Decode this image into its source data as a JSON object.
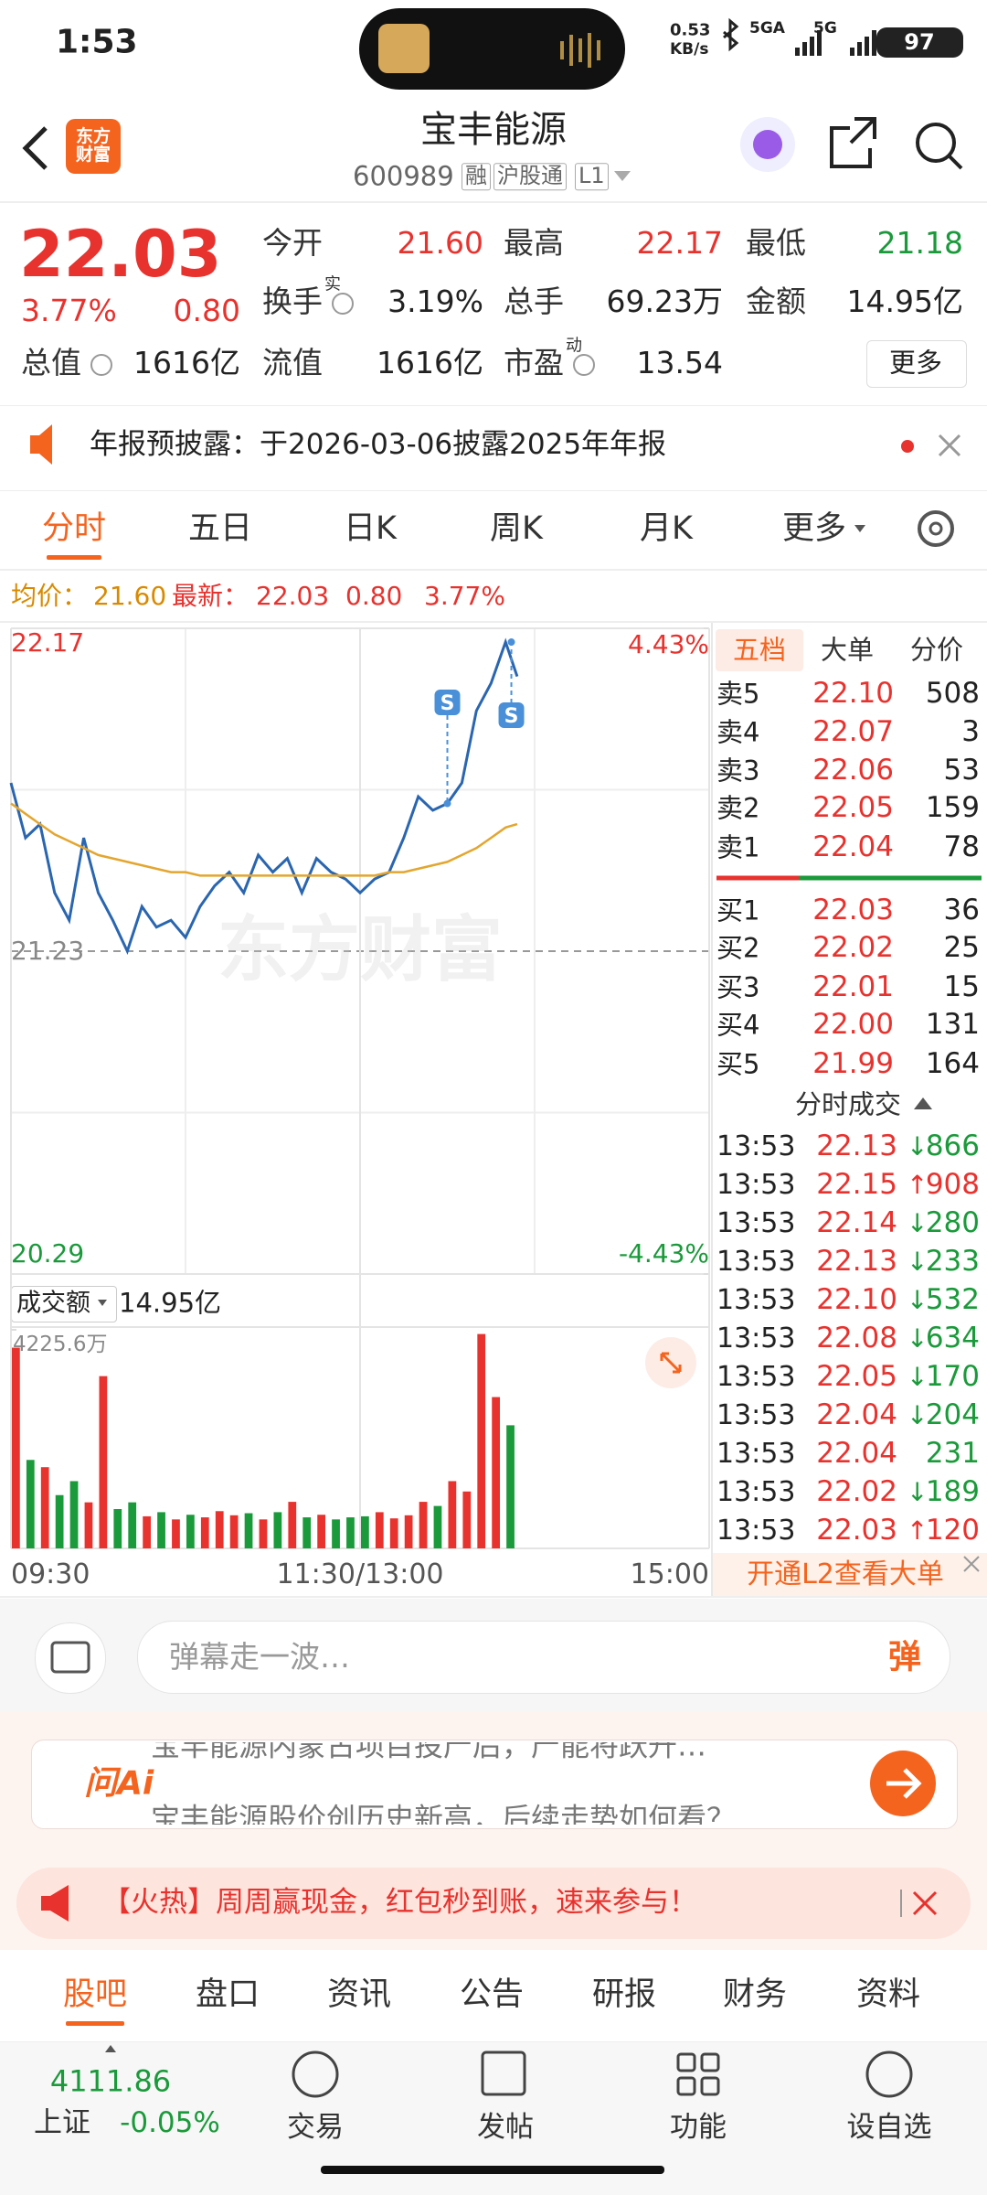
{
  "status": {
    "time": "1:53",
    "speed": "0.53",
    "speed_unit": "KB/s",
    "network1": "5GA",
    "network2": "5G",
    "battery": "97"
  },
  "header": {
    "title": "宝丰能源",
    "code": "600989",
    "tags": [
      "融",
      "沪股通",
      "L1"
    ],
    "logo": "东方财富"
  },
  "quote": {
    "price": "22.03",
    "change_pct": "3.77%",
    "change": "0.80",
    "fields": [
      {
        "label": "今开",
        "value": "21.60"
      },
      {
        "label": "最高",
        "value": "22.17"
      },
      {
        "label": "最低",
        "value": "21.18"
      },
      {
        "label": "换手",
        "sup": "实",
        "value": "3.19%"
      },
      {
        "label": "总手",
        "value": "69.23万"
      },
      {
        "label": "金额",
        "value": "14.95亿"
      },
      {
        "label": "总值",
        "value": "1616亿"
      },
      {
        "label": "流值",
        "value": "1616亿"
      },
      {
        "label": "市盈",
        "sup": "动",
        "value": "13.54"
      }
    ],
    "more": "更多"
  },
  "notice": {
    "text": "年报预披露：于2026-03-06披露2025年年报"
  },
  "tabs": [
    "分时",
    "五日",
    "日K",
    "周K",
    "月K",
    "更多"
  ],
  "info": {
    "avg_label": "均价：",
    "avg": "21.60",
    "last_label": "最新：",
    "last": "22.03",
    "change": "0.80",
    "change_pct": "3.77%"
  },
  "chart_data": [
    {
      "type": "line",
      "ylim": [
        20.29,
        22.17
      ],
      "yticks": [
        20.29,
        21.23,
        22.17
      ],
      "y2lim": [
        -4.43,
        4.43
      ],
      "y2ticks": [
        {
          "value": 4.43,
          "label": "4.43%"
        },
        {
          "value": -4.43,
          "label": "-4.43%"
        }
      ],
      "xlim": [
        0,
        240
      ],
      "xticks": [
        {
          "value": 0,
          "label": "09:30"
        },
        {
          "value": 120,
          "label": "11:30/13:00"
        },
        {
          "value": 240,
          "label": "15:00"
        }
      ],
      "x": [
        0,
        5,
        10,
        15,
        20,
        25,
        30,
        35,
        40,
        45,
        50,
        55,
        60,
        65,
        70,
        75,
        80,
        85,
        90,
        95,
        100,
        105,
        110,
        115,
        120,
        125,
        130,
        135,
        140,
        145,
        150,
        155,
        160,
        165,
        170,
        174
      ],
      "series": [
        {
          "color": "#2a66b0",
          "values": [
            21.72,
            21.56,
            21.6,
            21.4,
            21.32,
            21.56,
            21.4,
            21.32,
            21.23,
            21.36,
            21.3,
            21.32,
            21.27,
            21.36,
            21.42,
            21.46,
            21.4,
            21.51,
            21.46,
            21.5,
            21.4,
            21.5,
            21.46,
            21.44,
            21.4,
            21.44,
            21.46,
            21.56,
            21.68,
            21.64,
            21.66,
            21.72,
            21.93,
            22.01,
            22.13,
            22.03
          ]
        },
        {
          "color": "#e3a62f",
          "values": [
            21.66,
            21.63,
            21.6,
            21.57,
            21.55,
            21.53,
            21.51,
            21.5,
            21.49,
            21.48,
            21.47,
            21.46,
            21.46,
            21.45,
            21.45,
            21.45,
            21.45,
            21.45,
            21.45,
            21.45,
            21.45,
            21.45,
            21.45,
            21.45,
            21.45,
            21.45,
            21.46,
            21.46,
            21.47,
            21.48,
            21.49,
            21.51,
            21.53,
            21.56,
            21.59,
            21.6
          ]
        }
      ],
      "annotations": [
        {
          "text": "S",
          "x": 150
        },
        {
          "text": "S",
          "x": 172
        }
      ]
    },
    {
      "type": "bar",
      "title": "成交额",
      "subtitle": "14.95亿",
      "ylim": [
        0,
        4225.6
      ],
      "yticks": [
        {
          "value": 4225.6,
          "label": "4225.6万"
        }
      ],
      "xlim": [
        0,
        240
      ],
      "x": [
        0,
        5,
        10,
        15,
        20,
        25,
        30,
        35,
        40,
        45,
        50,
        55,
        60,
        65,
        70,
        75,
        80,
        85,
        90,
        95,
        100,
        105,
        110,
        115,
        120,
        125,
        130,
        135,
        140,
        145,
        150,
        155,
        160,
        165,
        170
      ],
      "values": [
        3880,
        1710,
        1570,
        1030,
        1300,
        890,
        3330,
        760,
        890,
        620,
        700,
        560,
        650,
        600,
        720,
        640,
        680,
        560,
        700,
        900,
        600,
        650,
        560,
        600,
        620,
        700,
        580,
        640,
        900,
        820,
        1300,
        1100,
        4144,
        2925,
        2380
      ],
      "colors": [
        "#e8322e",
        "#1a9a3a",
        "#e8322e",
        "#1a9a3a",
        "#1a9a3a",
        "#e8322e",
        "#e8322e",
        "#1a9a3a",
        "#1a9a3a",
        "#e8322e",
        "#1a9a3a",
        "#e8322e",
        "#1a9a3a",
        "#e8322e",
        "#e8322e",
        "#e8322e",
        "#1a9a3a",
        "#e8322e",
        "#1a9a3a",
        "#e8322e",
        "#1a9a3a",
        "#e8322e",
        "#1a9a3a",
        "#1a9a3a",
        "#1a9a3a",
        "#e8322e",
        "#e8322e",
        "#e8322e",
        "#e8322e",
        "#1a9a3a",
        "#e8322e",
        "#e8322e",
        "#e8322e",
        "#e8322e",
        "#1a9a3a"
      ]
    }
  ],
  "order_book": {
    "tabs": [
      "五档",
      "大单",
      "分价"
    ],
    "asks": [
      {
        "label": "卖5",
        "price": "22.10",
        "volume": "508"
      },
      {
        "label": "卖4",
        "price": "22.07",
        "volume": "3"
      },
      {
        "label": "卖3",
        "price": "22.06",
        "volume": "53"
      },
      {
        "label": "卖2",
        "price": "22.05",
        "volume": "159"
      },
      {
        "label": "卖1",
        "price": "22.04",
        "volume": "78"
      }
    ],
    "bids": [
      {
        "label": "买1",
        "price": "22.03",
        "volume": "36"
      },
      {
        "label": "买2",
        "price": "22.02",
        "volume": "25"
      },
      {
        "label": "买3",
        "price": "22.01",
        "volume": "15"
      },
      {
        "label": "买4",
        "price": "22.00",
        "volume": "131"
      },
      {
        "label": "买5",
        "price": "21.99",
        "volume": "164"
      }
    ],
    "trades_title": "分时成交",
    "trades": [
      {
        "time": "13:53",
        "price": "22.13",
        "dir": "↓",
        "volume": "866"
      },
      {
        "time": "13:53",
        "price": "22.15",
        "dir": "↑",
        "volume": "908"
      },
      {
        "time": "13:53",
        "price": "22.14",
        "dir": "↓",
        "volume": "280"
      },
      {
        "time": "13:53",
        "price": "22.13",
        "dir": "↓",
        "volume": "233"
      },
      {
        "time": "13:53",
        "price": "22.10",
        "dir": "↓",
        "volume": "532"
      },
      {
        "time": "13:53",
        "price": "22.08",
        "dir": "↓",
        "volume": "634"
      },
      {
        "time": "13:53",
        "price": "22.05",
        "dir": "↓",
        "volume": "170"
      },
      {
        "time": "13:53",
        "price": "22.04",
        "dir": "↓",
        "volume": "204"
      },
      {
        "time": "13:53",
        "price": "22.04",
        "dir": "",
        "volume": "231"
      },
      {
        "time": "13:53",
        "price": "22.02",
        "dir": "↓",
        "volume": "189"
      },
      {
        "time": "13:53",
        "price": "22.03",
        "dir": "↑",
        "volume": "120"
      }
    ],
    "l2": "开通L2查看大单"
  },
  "comment": {
    "placeholder": "弹幕走一波…",
    "button": "弹"
  },
  "ai": {
    "logo": "问Ai",
    "lines": [
      "宝丰能源内蒙古项目投产后，产能将跃升…",
      "宝丰能源股价创历史新高，后续走势如何看？"
    ]
  },
  "banner": {
    "text": "【火热】周周赢现金，红包秒到账，速来参与！"
  },
  "bottom_tabs": [
    "股吧",
    "盘口",
    "资讯",
    "公告",
    "研报",
    "财务",
    "资料"
  ],
  "footer": {
    "index_value": "4111.86",
    "index_name": "上证",
    "index_change": "-0.05%",
    "items": [
      "交易",
      "发帖",
      "功能",
      "设自选"
    ]
  }
}
